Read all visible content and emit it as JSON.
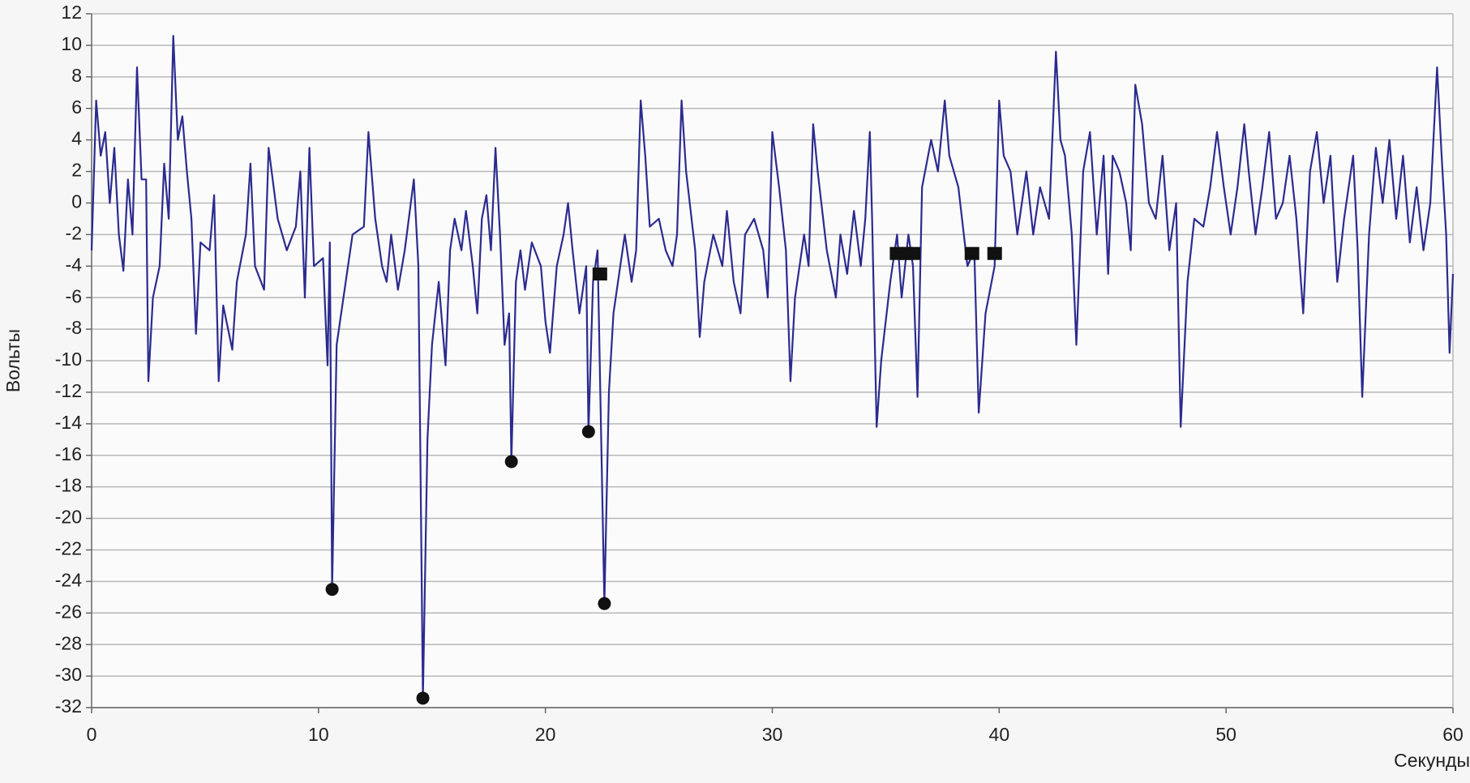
{
  "chart_data": {
    "type": "line",
    "xlabel": "Секунды",
    "ylabel": "Вольты",
    "xlim": [
      0,
      60
    ],
    "xticks": [
      0,
      10,
      20,
      30,
      40,
      50,
      60
    ],
    "ylim": [
      -32,
      12
    ],
    "yticks": [
      -32,
      -30,
      -28,
      -26,
      -24,
      -22,
      -20,
      -18,
      -16,
      -14,
      -12,
      -10,
      -8,
      -6,
      -4,
      -2,
      0,
      2,
      4,
      6,
      8,
      10,
      12
    ],
    "grid": true,
    "series": [
      {
        "style": "line",
        "color": "#2b2b8f",
        "x": [
          0,
          0.2,
          0.4,
          0.6,
          0.8,
          1.0,
          1.2,
          1.4,
          1.6,
          1.8,
          2.0,
          2.2,
          2.4,
          2.5,
          2.7,
          3.0,
          3.2,
          3.4,
          3.6,
          3.8,
          4.0,
          4.2,
          4.4,
          4.6,
          4.8,
          5.2,
          5.4,
          5.6,
          5.8,
          6.2,
          6.4,
          6.8,
          7.0,
          7.2,
          7.6,
          7.8,
          8.2,
          8.6,
          9.0,
          9.2,
          9.4,
          9.6,
          9.8,
          10.2,
          10.4,
          10.5,
          10.6,
          10.8,
          11.2,
          11.5,
          12.0,
          12.2,
          12.5,
          12.8,
          13.0,
          13.2,
          13.5,
          13.8,
          14.2,
          14.4,
          14.6,
          14.8,
          15.0,
          15.3,
          15.6,
          15.8,
          16.0,
          16.3,
          16.5,
          16.8,
          17.0,
          17.2,
          17.4,
          17.6,
          17.8,
          18.0,
          18.2,
          18.4,
          18.5,
          18.7,
          18.9,
          19.1,
          19.4,
          19.8,
          20.0,
          20.2,
          20.5,
          20.8,
          21.0,
          21.2,
          21.5,
          21.8,
          21.9,
          22.1,
          22.3,
          22.6,
          22.8,
          23.0,
          23.2,
          23.5,
          23.8,
          24.0,
          24.2,
          24.4,
          24.6,
          25.0,
          25.3,
          25.6,
          25.8,
          26.0,
          26.2,
          26.6,
          26.8,
          27.0,
          27.4,
          27.8,
          28.0,
          28.3,
          28.6,
          28.8,
          29.2,
          29.6,
          29.8,
          30.0,
          30.3,
          30.6,
          30.8,
          31.0,
          31.4,
          31.6,
          31.8,
          32.0,
          32.4,
          32.8,
          33.0,
          33.3,
          33.6,
          33.9,
          34.1,
          34.3,
          34.4,
          34.6,
          34.8,
          35.2,
          35.5,
          35.7,
          36.0,
          36.2,
          36.4,
          36.6,
          37.0,
          37.3,
          37.6,
          37.8,
          38.2,
          38.6,
          38.9,
          39.1,
          39.4,
          39.8,
          40.0,
          40.2,
          40.5,
          40.8,
          41.2,
          41.5,
          41.8,
          42.2,
          42.5,
          42.7,
          42.9,
          43.2,
          43.4,
          43.7,
          44.0,
          44.3,
          44.6,
          44.8,
          45.0,
          45.3,
          45.6,
          45.8,
          46.0,
          46.3,
          46.6,
          46.9,
          47.2,
          47.5,
          47.8,
          48.0,
          48.3,
          48.6,
          49.0,
          49.3,
          49.6,
          49.9,
          50.2,
          50.5,
          50.8,
          51.0,
          51.3,
          51.6,
          51.9,
          52.2,
          52.5,
          52.8,
          53.1,
          53.4,
          53.7,
          54.0,
          54.3,
          54.6,
          54.9,
          55.2,
          55.6,
          55.8,
          56.0,
          56.3,
          56.6,
          56.9,
          57.2,
          57.5,
          57.8,
          58.1,
          58.4,
          58.7,
          59.0,
          59.3,
          59.5,
          59.7,
          59.85,
          60
        ],
        "values": [
          -3,
          6.5,
          3,
          4.5,
          0,
          3.5,
          -2,
          -4.3,
          1.5,
          -2,
          8.6,
          1.5,
          1.5,
          -11.3,
          -6,
          -4,
          2.5,
          -1,
          10.6,
          4,
          5.5,
          2,
          -1,
          -8.3,
          -2.5,
          -3,
          0.5,
          -11.3,
          -6.5,
          -9.3,
          -5,
          -2,
          2.5,
          -4,
          -5.5,
          3.5,
          -1,
          -3,
          -1.5,
          2,
          -6,
          3.5,
          -4,
          -3.5,
          -10.3,
          -2.5,
          -24.5,
          -9,
          -5,
          -2,
          -1.5,
          4.5,
          -1,
          -4,
          -5,
          -2,
          -5.5,
          -3,
          1.5,
          -4,
          -31.4,
          -15,
          -9,
          -5,
          -10.3,
          -3,
          -1,
          -3,
          -0.5,
          -4,
          -7,
          -1,
          0.5,
          -3,
          3.5,
          -2,
          -9,
          -7,
          -16.4,
          -5,
          -3,
          -5.5,
          -2.5,
          -4,
          -7.5,
          -9.5,
          -4,
          -2,
          0,
          -3,
          -7,
          -4,
          -14.5,
          -5,
          -3,
          -25.4,
          -12,
          -7,
          -5,
          -2,
          -5,
          -3,
          6.5,
          3,
          -1.5,
          -1,
          -3,
          -4,
          -2,
          6.5,
          2,
          -3,
          -8.5,
          -5,
          -2,
          -4,
          -0.5,
          -5,
          -7,
          -2,
          -1,
          -3,
          -6,
          4.5,
          1,
          -3,
          -11.3,
          -6,
          -2,
          -4,
          5,
          2,
          -3,
          -6,
          -2,
          -4.5,
          -0.5,
          -4,
          -1,
          4.5,
          -1,
          -14.2,
          -10,
          -5,
          -2,
          -6,
          -2,
          -4,
          -12.3,
          1,
          4,
          2,
          6.5,
          3,
          1,
          -4,
          -3,
          -13.3,
          -7,
          -4,
          6.5,
          3,
          2,
          -2,
          2,
          -2,
          1,
          -1,
          9.6,
          4,
          3,
          -2,
          -9,
          2,
          4.5,
          -2,
          3,
          -4.5,
          3,
          2,
          0,
          -3,
          7.5,
          5,
          0,
          -1,
          3,
          -3,
          0,
          -14.2,
          -5,
          -1,
          -1.5,
          1,
          4.5,
          1,
          -2,
          1,
          5,
          2,
          -2,
          1,
          4.5,
          -1,
          0,
          3,
          -1,
          -7,
          2,
          4.5,
          0,
          3,
          -5,
          -1,
          3,
          -3,
          -12.3,
          -2,
          3.5,
          0,
          4,
          -1,
          3,
          -2.5,
          1,
          -3,
          0,
          8.6,
          3,
          -2,
          -9.5,
          -4.5
        ]
      },
      {
        "style": "circle",
        "color": "#111111",
        "x": [
          10.6,
          14.6,
          18.5,
          21.9,
          22.6
        ],
        "values": [
          -24.5,
          -31.4,
          -16.4,
          -14.5,
          -25.4
        ]
      },
      {
        "style": "square",
        "color": "#111111",
        "x": [
          22.4,
          35.5,
          35.9,
          36.2,
          38.8,
          39.8
        ],
        "values": [
          -4.5,
          -3.2,
          -3.2,
          -3.2,
          -3.2,
          -3.2
        ]
      }
    ]
  }
}
